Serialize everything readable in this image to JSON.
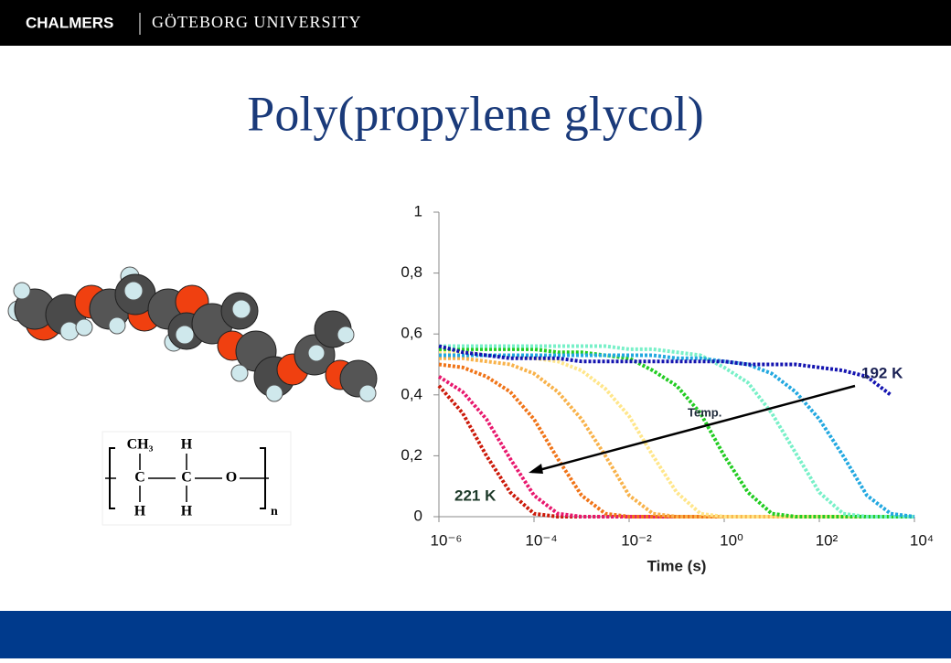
{
  "header": {
    "brand": "CHALMERS",
    "university": "GÖTEBORG UNIVERSITY"
  },
  "title": "Poly(propylene glycol)",
  "formula": {
    "top": [
      "CH₃",
      "H"
    ],
    "middle": [
      "C",
      "C",
      "O"
    ],
    "bottom": [
      "H",
      "H"
    ],
    "subscript": "n"
  },
  "chart_data": {
    "type": "line",
    "xscale": "log",
    "xlabel": "Time (s)",
    "x": [
      1e-06,
      3.16e-06,
      1e-05,
      3.16e-05,
      0.0001,
      0.000316,
      0.001,
      0.00316,
      0.01,
      0.0316,
      0.1,
      0.316,
      1,
      3.16,
      10,
      31.6,
      100,
      316,
      1000,
      3160,
      10000
    ],
    "series": [
      {
        "color": "#cc1a0a",
        "values": [
          0.43,
          0.34,
          0.2,
          0.08,
          0.01,
          0,
          0,
          0,
          0,
          0,
          0,
          0,
          0,
          0,
          0,
          0,
          0,
          0,
          0,
          0,
          0
        ]
      },
      {
        "color": "#e8186e",
        "values": [
          0.46,
          0.41,
          0.32,
          0.19,
          0.07,
          0.01,
          0,
          0,
          0,
          0,
          0,
          0,
          0,
          0,
          0,
          0,
          0,
          0,
          0,
          0,
          0
        ]
      },
      {
        "color": "#f07418",
        "values": [
          0.5,
          0.49,
          0.46,
          0.41,
          0.32,
          0.19,
          0.07,
          0.01,
          0,
          0,
          0,
          0,
          0,
          0,
          0,
          0,
          0,
          0,
          0,
          0,
          0
        ]
      },
      {
        "color": "#f8b24a",
        "values": [
          0.52,
          0.52,
          0.51,
          0.5,
          0.47,
          0.41,
          0.32,
          0.2,
          0.07,
          0.01,
          0,
          0,
          0,
          0,
          0,
          0,
          0,
          0,
          0,
          0,
          0
        ]
      },
      {
        "color": "#ffe68a",
        "values": [
          0.54,
          0.54,
          0.53,
          0.53,
          0.52,
          0.51,
          0.48,
          0.42,
          0.33,
          0.2,
          0.08,
          0.01,
          0,
          0,
          0,
          0,
          0,
          0,
          0,
          0,
          0
        ]
      },
      {
        "color": "#22cc22",
        "values": [
          0.55,
          0.55,
          0.55,
          0.55,
          0.55,
          0.54,
          0.54,
          0.53,
          0.52,
          0.48,
          0.43,
          0.34,
          0.2,
          0.08,
          0.01,
          0,
          0,
          0,
          0,
          0,
          0
        ]
      },
      {
        "color": "#78f0c8",
        "values": [
          0.56,
          0.56,
          0.56,
          0.56,
          0.56,
          0.56,
          0.56,
          0.56,
          0.55,
          0.55,
          0.54,
          0.53,
          0.49,
          0.44,
          0.34,
          0.21,
          0.08,
          0.01,
          0,
          0,
          0
        ]
      },
      {
        "color": "#22a8e0",
        "values": [
          0.53,
          0.53,
          0.53,
          0.53,
          0.53,
          0.53,
          0.53,
          0.53,
          0.53,
          0.53,
          0.52,
          0.52,
          0.51,
          0.5,
          0.47,
          0.41,
          0.32,
          0.2,
          0.07,
          0.01,
          0
        ]
      },
      {
        "color": "#1414b0",
        "values": [
          0.56,
          0.54,
          0.53,
          0.52,
          0.52,
          0.52,
          0.51,
          0.51,
          0.51,
          0.51,
          0.51,
          0.51,
          0.51,
          0.5,
          0.5,
          0.5,
          0.49,
          0.48,
          0.46,
          0.4,
          null
        ]
      }
    ],
    "xlim": [
      1e-06,
      10000
    ],
    "xticks": [
      {
        "value": 1e-06,
        "label": "10⁻⁶"
      },
      {
        "value": 0.0001,
        "label": "10⁻⁴"
      },
      {
        "value": 0.01,
        "label": "10⁻²"
      },
      {
        "value": 1,
        "label": "10⁰"
      },
      {
        "value": 100,
        "label": "10²"
      },
      {
        "value": 10000,
        "label": "10⁴"
      }
    ],
    "ylim": [
      0,
      1
    ],
    "yticks": [
      0,
      {
        "value": 0.2,
        "label": "0,2"
      },
      {
        "value": 0.4,
        "label": "0,4"
      },
      {
        "value": 0.6,
        "label": "0,6"
      },
      {
        "value": 0.8,
        "label": "0,8"
      },
      1
    ],
    "annotations": {
      "high": "192 K",
      "low": "221 K",
      "arrow": "Temp."
    }
  }
}
